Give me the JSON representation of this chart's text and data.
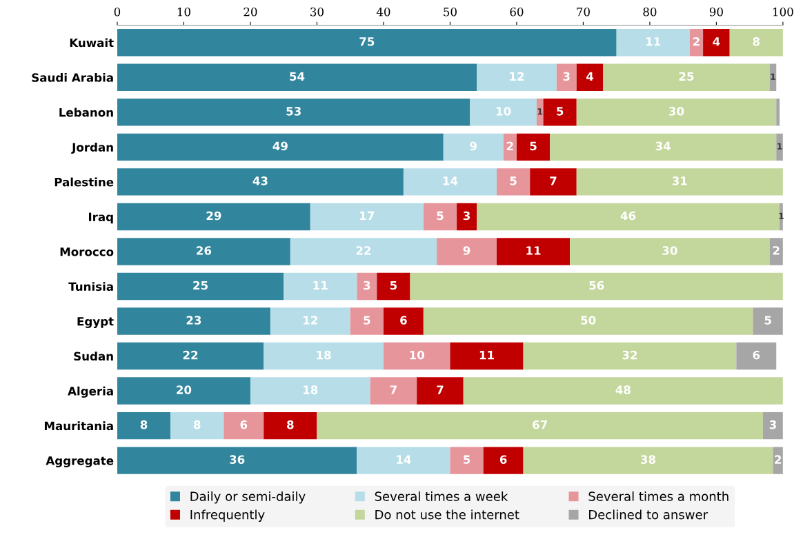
{
  "chart_data": {
    "type": "bar",
    "orientation": "horizontal",
    "stacked": true,
    "categories": [
      "Kuwait",
      "Saudi Arabia",
      "Lebanon",
      "Jordan",
      "Palestine",
      "Iraq",
      "Morocco",
      "Tunisia",
      "Egypt",
      "Sudan",
      "Algeria",
      "Mauritania",
      "Aggregate"
    ],
    "series": [
      {
        "name": "Daily or semi-daily",
        "color": "#31859c",
        "values": [
          75,
          54,
          53,
          49,
          43,
          29,
          26,
          25,
          23,
          22,
          20,
          8,
          36
        ]
      },
      {
        "name": "Several times a week",
        "color": "#b7dee8",
        "values": [
          11,
          12,
          10,
          9,
          14,
          17,
          22,
          11,
          12,
          18,
          18,
          8,
          14
        ]
      },
      {
        "name": "Several times a month",
        "color": "#e6959b",
        "values": [
          2,
          3,
          1,
          2,
          5,
          5,
          9,
          3,
          5,
          10,
          7,
          6,
          5
        ]
      },
      {
        "name": "Infrequently",
        "color": "#c00000",
        "values": [
          4,
          4,
          5,
          5,
          7,
          3,
          11,
          5,
          6,
          11,
          7,
          8,
          6
        ]
      },
      {
        "name": "Do not use the internet",
        "color": "#c3d69b",
        "values": [
          8,
          25,
          30,
          34,
          31,
          45.5,
          30,
          56,
          49.5,
          32,
          48,
          67,
          37.5
        ],
        "value_labels": [
          "8",
          "25",
          "30",
          "34",
          "31",
          "46",
          "30",
          "56",
          "50",
          "32",
          "48",
          "67",
          "38"
        ]
      },
      {
        "name": "Declined to answer",
        "color": "#a6a6a6",
        "values": [
          null,
          1,
          0.5,
          1,
          null,
          0.5,
          2,
          null,
          4.5,
          6,
          null,
          3,
          1.5
        ],
        "value_labels": [
          null,
          "1",
          null,
          "1",
          null,
          "1",
          "2",
          null,
          "5",
          "6",
          null,
          "3",
          "2"
        ]
      }
    ],
    "data_labels": true,
    "xlim": [
      0,
      100
    ],
    "xticks": [
      0,
      10,
      20,
      30,
      40,
      50,
      60,
      70,
      80,
      90,
      100
    ],
    "grid": false,
    "legend": "bottom"
  }
}
